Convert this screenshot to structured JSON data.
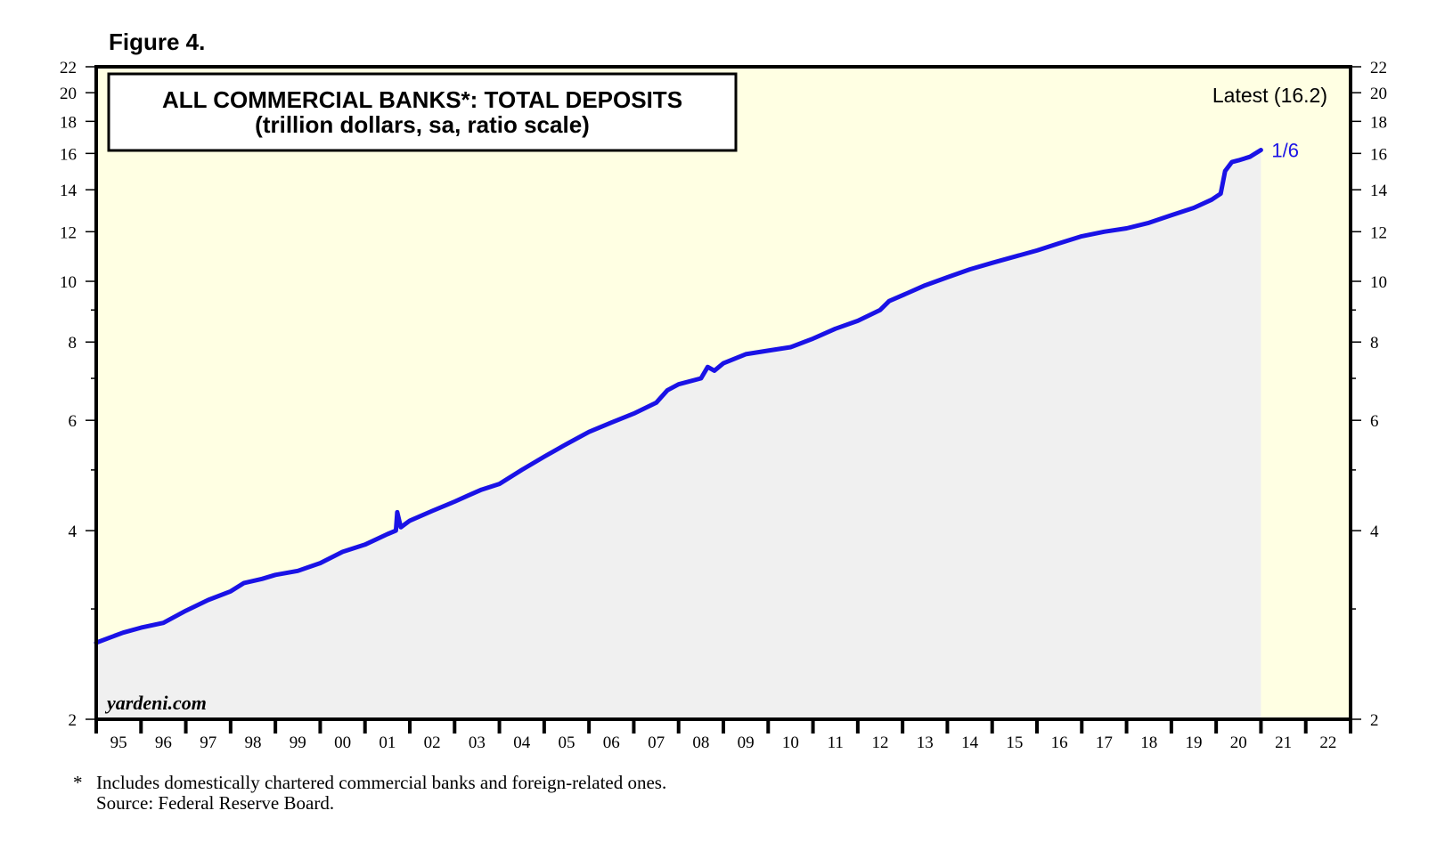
{
  "figure_label": "Figure 4.",
  "chart_data": {
    "type": "area",
    "title": "ALL COMMERCIAL BANKS*: TOTAL DEPOSITS",
    "subtitle": "(trillion dollars, sa, ratio scale)",
    "y_scale": "log",
    "ylim": [
      2,
      22
    ],
    "y_ticks": [
      2,
      4,
      6,
      8,
      10,
      12,
      14,
      16,
      18,
      20,
      22
    ],
    "y_tick_labels": [
      "2",
      "4",
      "6",
      "8",
      "10",
      "12",
      "14",
      "16",
      "18",
      "20",
      "22"
    ],
    "y_minor_ticks": [
      3,
      5,
      7,
      9
    ],
    "x_range": [
      1995,
      2023
    ],
    "x_tick_labels": [
      "95",
      "96",
      "97",
      "98",
      "99",
      "00",
      "01",
      "02",
      "03",
      "04",
      "05",
      "06",
      "07",
      "08",
      "09",
      "10",
      "11",
      "12",
      "13",
      "14",
      "15",
      "16",
      "17",
      "18",
      "19",
      "20",
      "21",
      "22"
    ],
    "grid": false,
    "series": [
      {
        "x": [
          1995.0,
          1995.3,
          1995.6,
          1996.0,
          1996.5,
          1997.0,
          1997.5,
          1998.0,
          1998.3,
          1998.7,
          1999.0,
          1999.5,
          2000.0,
          2000.5,
          2001.0,
          2001.5,
          2001.69,
          2001.72,
          2001.8,
          2002.0,
          2002.5,
          2003.0,
          2003.3,
          2003.6,
          2004.0,
          2004.5,
          2005.0,
          2005.5,
          2006.0,
          2006.5,
          2007.0,
          2007.5,
          2007.75,
          2008.0,
          2008.5,
          2008.65,
          2008.8,
          2009.0,
          2009.5,
          2010.0,
          2010.5,
          2011.0,
          2011.5,
          2012.0,
          2012.5,
          2012.7,
          2013.0,
          2013.5,
          2014.0,
          2014.5,
          2015.0,
          2015.5,
          2016.0,
          2016.5,
          2017.0,
          2017.5,
          2018.0,
          2018.5,
          2019.0,
          2019.5,
          2019.9,
          2020.1,
          2020.2,
          2020.35,
          2020.5,
          2020.75,
          2021.0
        ],
        "values": [
          2.65,
          2.7,
          2.75,
          2.8,
          2.85,
          2.98,
          3.1,
          3.2,
          3.3,
          3.35,
          3.4,
          3.45,
          3.55,
          3.7,
          3.8,
          3.95,
          4.0,
          4.28,
          4.05,
          4.15,
          4.3,
          4.45,
          4.55,
          4.65,
          4.75,
          5.0,
          5.25,
          5.5,
          5.75,
          5.95,
          6.15,
          6.4,
          6.7,
          6.85,
          7.0,
          7.3,
          7.2,
          7.4,
          7.65,
          7.75,
          7.85,
          8.1,
          8.4,
          8.65,
          9.0,
          9.3,
          9.5,
          9.85,
          10.15,
          10.45,
          10.7,
          10.95,
          11.2,
          11.5,
          11.8,
          12.0,
          12.15,
          12.4,
          12.75,
          13.1,
          13.5,
          13.8,
          15.0,
          15.5,
          15.6,
          15.8,
          16.2
        ]
      }
    ],
    "annotations": {
      "latest_label": "Latest (16.2)",
      "latest_date": "1/6",
      "watermark": "yardeni.com"
    },
    "colors": {
      "line": "#1a12e6",
      "past_fill": "#f0f0f0",
      "future_fill": "#ffffe3",
      "frame": "#000000"
    }
  },
  "footnote": {
    "marker": "*",
    "text": "Includes domestically chartered commercial banks and foreign-related ones.",
    "source": "Source: Federal Reserve Board."
  }
}
